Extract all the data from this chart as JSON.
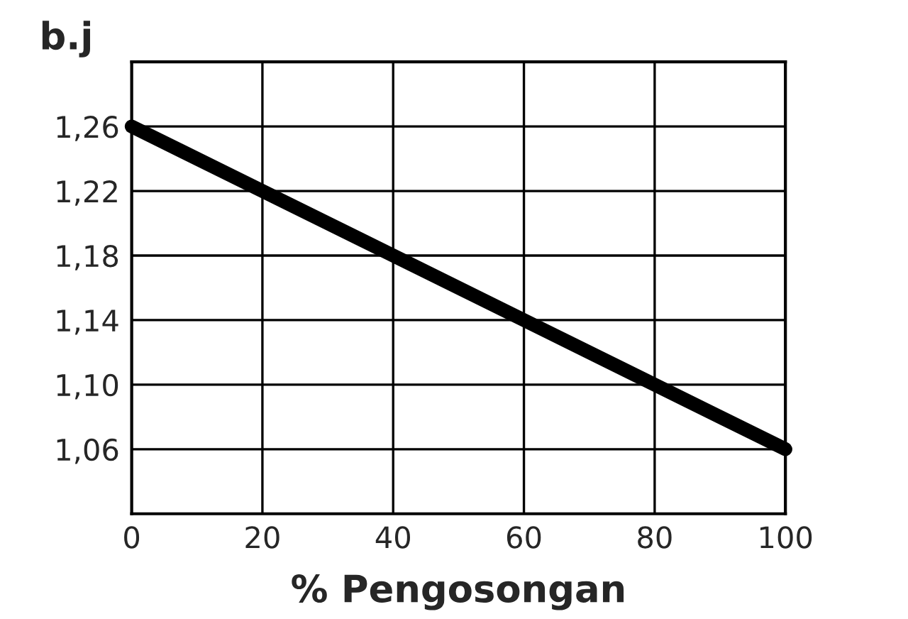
{
  "chart_data": {
    "type": "line",
    "ylabel": "b.j",
    "xlabel": "% Pengosongan",
    "x": [
      0,
      100
    ],
    "series": [
      {
        "color": "#000000",
        "values": [
          1.26,
          1.06
        ]
      }
    ],
    "xlim": [
      0,
      100
    ],
    "xticks": [
      0,
      20,
      40,
      60,
      80,
      100
    ],
    "ylim": [
      1.02,
      1.3
    ],
    "yticks": [
      {
        "value": 1.06,
        "label": "1,06"
      },
      {
        "value": 1.1,
        "label": "1,10"
      },
      {
        "value": 1.14,
        "label": "1,14"
      },
      {
        "value": 1.18,
        "label": "1,18"
      },
      {
        "value": 1.22,
        "label": "1,22"
      },
      {
        "value": 1.26,
        "label": "1,26"
      }
    ],
    "grid": true,
    "line_style": "solid",
    "marker": "none"
  }
}
